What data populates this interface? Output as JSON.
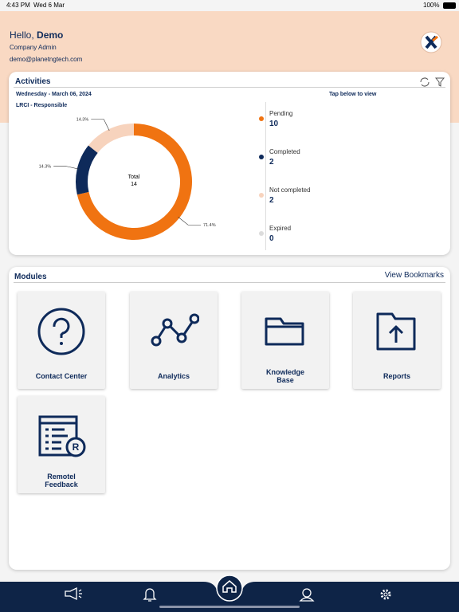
{
  "status_bar": {
    "time": "4:43 PM",
    "date": "Wed 6 Mar",
    "battery": "100%"
  },
  "header": {
    "greeting": "Hello,",
    "name": "Demo",
    "role": "Company Admin",
    "email": "demo@planetngtech.com"
  },
  "activities": {
    "title": "Activities",
    "date": "Wednesday - March 06, 2024",
    "filter": "LRCI - Responsible",
    "hint": "Tap below to view",
    "chart_data": {
      "type": "donut",
      "center_label": "Total",
      "total": 14,
      "categories": [
        "Pending",
        "Completed",
        "Not completed",
        "Expired"
      ],
      "values": [
        10,
        2,
        2,
        0
      ],
      "percent_labels": [
        "71.4%",
        "14.3%",
        "14.3%",
        null
      ],
      "colors": [
        "#f07311",
        "#0e2a5a",
        "#f7d3bd",
        "#dcdcdc"
      ]
    }
  },
  "modules": {
    "title": "Modules",
    "bookmarks": "View Bookmarks",
    "items": [
      "Contact Center",
      "Analytics",
      "Knowledge Base",
      "Reports",
      "Remotel Feedback"
    ]
  }
}
